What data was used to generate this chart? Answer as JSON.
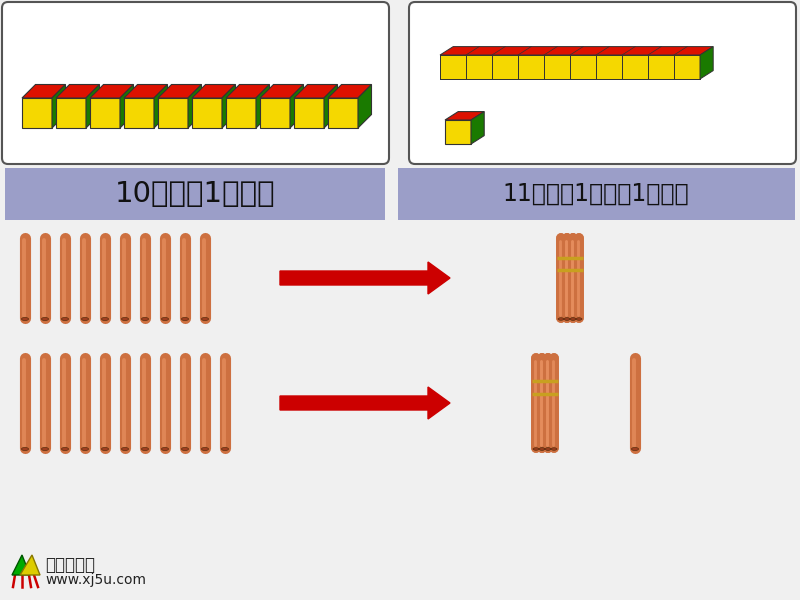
{
  "bg_color": "#f0f0f0",
  "text1": "10个一是1个十。",
  "text2": "11里面有1个十和1个一。",
  "text_bg_color": "#9b9ec8",
  "text_color": "#111111",
  "sticks_color": "#cd7040",
  "sticks_highlight": "#e89060",
  "sticks_dark": "#8b3a10",
  "sticks_bottom": "#a04020",
  "arrow_color": "#cc0000",
  "logo_text1": "小学资源网",
  "logo_text2": "www.xj5u.com",
  "cube_yellow": "#f5d800",
  "cube_red": "#dd1100",
  "cube_green": "#1a7a00",
  "band_color": "#c8a020",
  "box_bg": "#ffffff",
  "box_edge": "#555555"
}
